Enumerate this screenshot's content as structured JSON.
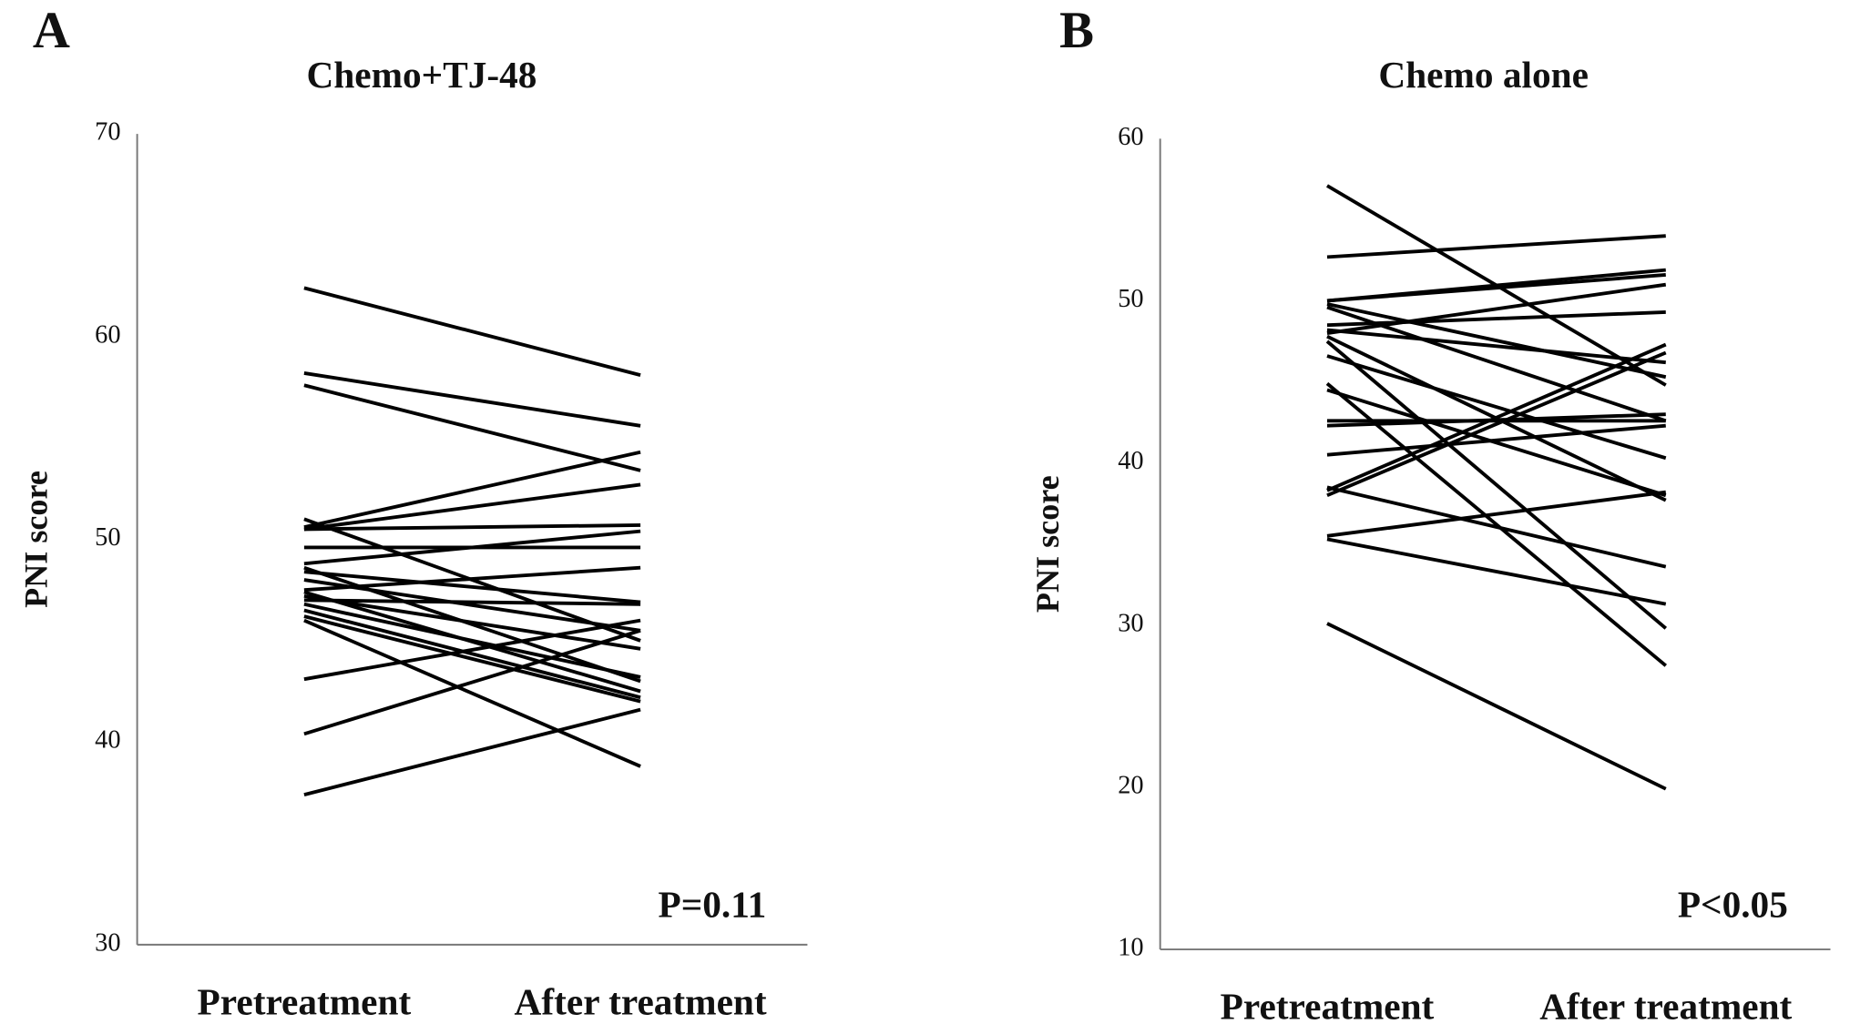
{
  "chart_data": [
    {
      "type": "line",
      "panel_label": "A",
      "title": "Chemo+TJ-48",
      "ylabel": "PNI score",
      "annotation": "P=0.11",
      "categories": [
        "Pretreatment",
        "After treatment"
      ],
      "color": "#000000",
      "ylim": [
        30,
        70
      ],
      "yticks": [
        30,
        40,
        50,
        60,
        70
      ],
      "grid": false,
      "series": [
        {
          "values": [
            62.4,
            58.1
          ]
        },
        {
          "values": [
            58.2,
            55.6
          ]
        },
        {
          "values": [
            57.6,
            53.4
          ]
        },
        {
          "values": [
            51.0,
            45.0
          ]
        },
        {
          "values": [
            50.6,
            54.3
          ]
        },
        {
          "values": [
            50.5,
            52.7
          ]
        },
        {
          "values": [
            50.5,
            50.7
          ]
        },
        {
          "values": [
            49.6,
            49.6
          ]
        },
        {
          "values": [
            48.8,
            50.4
          ]
        },
        {
          "values": [
            48.6,
            43.0
          ]
        },
        {
          "values": [
            48.4,
            46.9
          ]
        },
        {
          "values": [
            48.0,
            45.5
          ]
        },
        {
          "values": [
            47.5,
            48.6
          ]
        },
        {
          "values": [
            47.4,
            42.5
          ]
        },
        {
          "values": [
            47.2,
            44.6
          ]
        },
        {
          "values": [
            47.0,
            46.8
          ]
        },
        {
          "values": [
            46.8,
            43.2
          ]
        },
        {
          "values": [
            46.5,
            42.2
          ]
        },
        {
          "values": [
            46.2,
            42.0
          ]
        },
        {
          "values": [
            46.0,
            38.8
          ]
        },
        {
          "values": [
            43.1,
            46.0
          ]
        },
        {
          "values": [
            40.4,
            45.5
          ]
        },
        {
          "values": [
            37.4,
            41.6
          ]
        }
      ]
    },
    {
      "type": "line",
      "panel_label": "B",
      "title": "Chemo alone",
      "ylabel": "PNI score",
      "annotation": "P<0.05",
      "categories": [
        "Pretreatment",
        "After treatment"
      ],
      "color": "#000000",
      "ylim": [
        10,
        60
      ],
      "yticks": [
        10,
        20,
        30,
        40,
        50,
        60
      ],
      "grid": false,
      "series": [
        {
          "values": [
            57.1,
            44.8
          ]
        },
        {
          "values": [
            52.7,
            54.0
          ]
        },
        {
          "values": [
            50.0,
            51.9
          ]
        },
        {
          "values": [
            50.0,
            51.6
          ]
        },
        {
          "values": [
            49.8,
            45.3
          ]
        },
        {
          "values": [
            49.6,
            42.6
          ]
        },
        {
          "values": [
            48.5,
            49.3
          ]
        },
        {
          "values": [
            48.2,
            46.2
          ]
        },
        {
          "values": [
            48.0,
            51.0
          ]
        },
        {
          "values": [
            47.8,
            37.7
          ]
        },
        {
          "values": [
            47.5,
            29.8
          ]
        },
        {
          "values": [
            46.6,
            40.3
          ]
        },
        {
          "values": [
            44.9,
            27.5
          ]
        },
        {
          "values": [
            44.5,
            38.0
          ]
        },
        {
          "values": [
            42.6,
            42.6
          ]
        },
        {
          "values": [
            42.3,
            43.0
          ]
        },
        {
          "values": [
            40.5,
            42.3
          ]
        },
        {
          "values": [
            38.3,
            47.3
          ]
        },
        {
          "values": [
            38.0,
            46.8
          ]
        },
        {
          "values": [
            38.5,
            33.6
          ]
        },
        {
          "values": [
            35.5,
            38.2
          ]
        },
        {
          "values": [
            35.3,
            31.3
          ]
        },
        {
          "values": [
            30.1,
            19.9
          ]
        }
      ]
    }
  ]
}
